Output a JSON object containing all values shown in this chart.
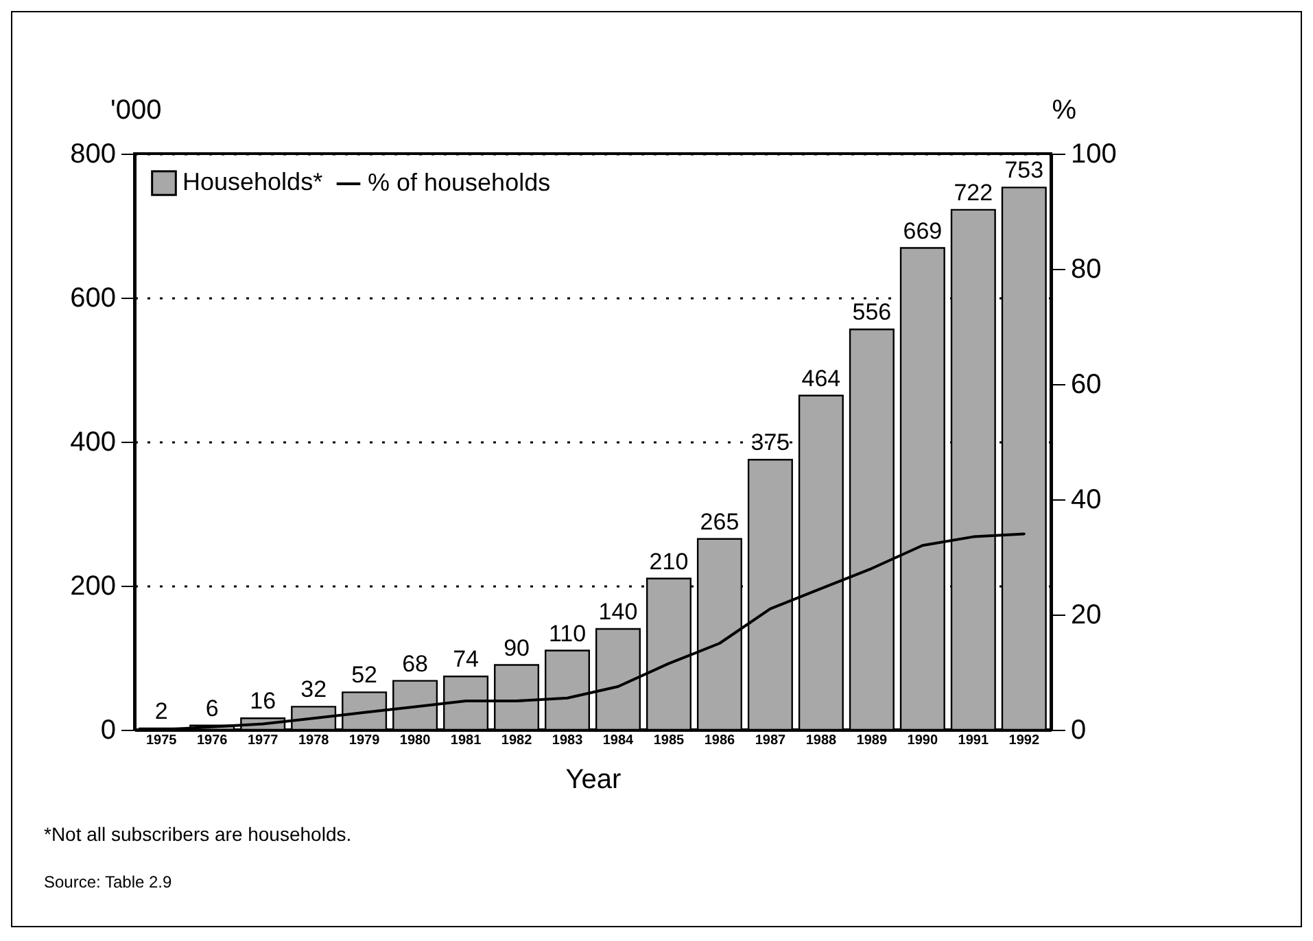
{
  "chart_data": {
    "type": "bar",
    "xlabel": "Year",
    "ylabel": "'000",
    "y2label": "%",
    "categories": [
      "1975",
      "1976",
      "1977",
      "1978",
      "1979",
      "1980",
      "1981",
      "1982",
      "1983",
      "1984",
      "1985",
      "1986",
      "1987",
      "1988",
      "1989",
      "1990",
      "1991",
      "1992"
    ],
    "series": [
      {
        "name": "Households*",
        "color": "#a8a8a8",
        "values": [
          2,
          6,
          16,
          32,
          52,
          68,
          74,
          90,
          110,
          140,
          210,
          265,
          375,
          464,
          556,
          669,
          722,
          753
        ],
        "value_labels": [
          "2",
          "6",
          "16",
          "32",
          "52",
          "68",
          "74",
          "90",
          "110",
          "140",
          "210",
          "265",
          "375",
          "464",
          "556",
          "669",
          "722",
          "753"
        ]
      },
      {
        "name": "% of households",
        "type": "line",
        "axis": "y2",
        "color": "#000000",
        "values": [
          0,
          0.5,
          1,
          2,
          3,
          4,
          5,
          5,
          5.5,
          7.5,
          11.5,
          15,
          21,
          24.5,
          28,
          32,
          33.5,
          34
        ]
      }
    ],
    "ylim": [
      0,
      800
    ],
    "yticks": [
      0,
      200,
      400,
      600,
      800
    ],
    "y2lim": [
      0,
      100
    ],
    "y2ticks": [
      0,
      20,
      40,
      60,
      80,
      100
    ],
    "grid": "y",
    "legend": "top left",
    "marker": "none",
    "line_style": "solid",
    "annotations": [
      "*Not all subscribers are households.",
      "Source: Table 2.9"
    ]
  }
}
